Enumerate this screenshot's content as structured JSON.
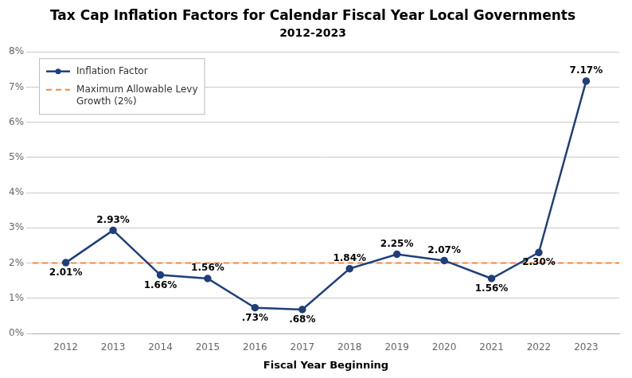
{
  "chart_data": {
    "type": "line",
    "title": "Tax Cap Inflation Factors for Calendar Fiscal Year Local Governments",
    "subtitle": "2012-2023",
    "xlabel": "Fiscal Year Beginning",
    "x": [
      2012,
      2013,
      2014,
      2015,
      2016,
      2017,
      2018,
      2019,
      2020,
      2021,
      2022,
      2023
    ],
    "xlim": [
      2011.3,
      2023.7
    ],
    "xticks": [
      2012,
      2013,
      2014,
      2015,
      2016,
      2017,
      2018,
      2019,
      2020,
      2021,
      2022,
      2023
    ],
    "ylim": [
      0,
      8
    ],
    "yticks": [
      {
        "value": 0,
        "label": "0%"
      },
      {
        "value": 1,
        "label": "1%"
      },
      {
        "value": 2,
        "label": "2%"
      },
      {
        "value": 3,
        "label": "3%"
      },
      {
        "value": 4,
        "label": "4%"
      },
      {
        "value": 5,
        "label": "5%"
      },
      {
        "value": 6,
        "label": "6%"
      },
      {
        "value": 7,
        "label": "7%"
      },
      {
        "value": 8,
        "label": "8%"
      }
    ],
    "grid": "y",
    "legend": "upper left",
    "data_labels": true,
    "series": [
      {
        "name": "Inflation Factor",
        "color": "#1f3f7a",
        "marker": "circle",
        "line_style": "solid",
        "values": [
          2.01,
          2.93,
          1.66,
          1.56,
          0.73,
          0.68,
          1.84,
          2.25,
          2.07,
          1.56,
          2.3,
          7.17
        ],
        "value_labels": [
          "2.01%",
          "2.93%",
          "1.66%",
          "1.56%",
          ".73%",
          ".68%",
          "1.84%",
          "2.25%",
          "2.07%",
          "1.56%",
          "2.30%",
          "7.17%"
        ]
      },
      {
        "name": "Maximum Allowable Levy\nGrowth (2%)",
        "color": "#f4893a",
        "marker": "none",
        "line_style": "dashed",
        "x": [
          2011.3,
          2023.7
        ],
        "values": [
          2.0,
          2.0
        ]
      }
    ]
  }
}
